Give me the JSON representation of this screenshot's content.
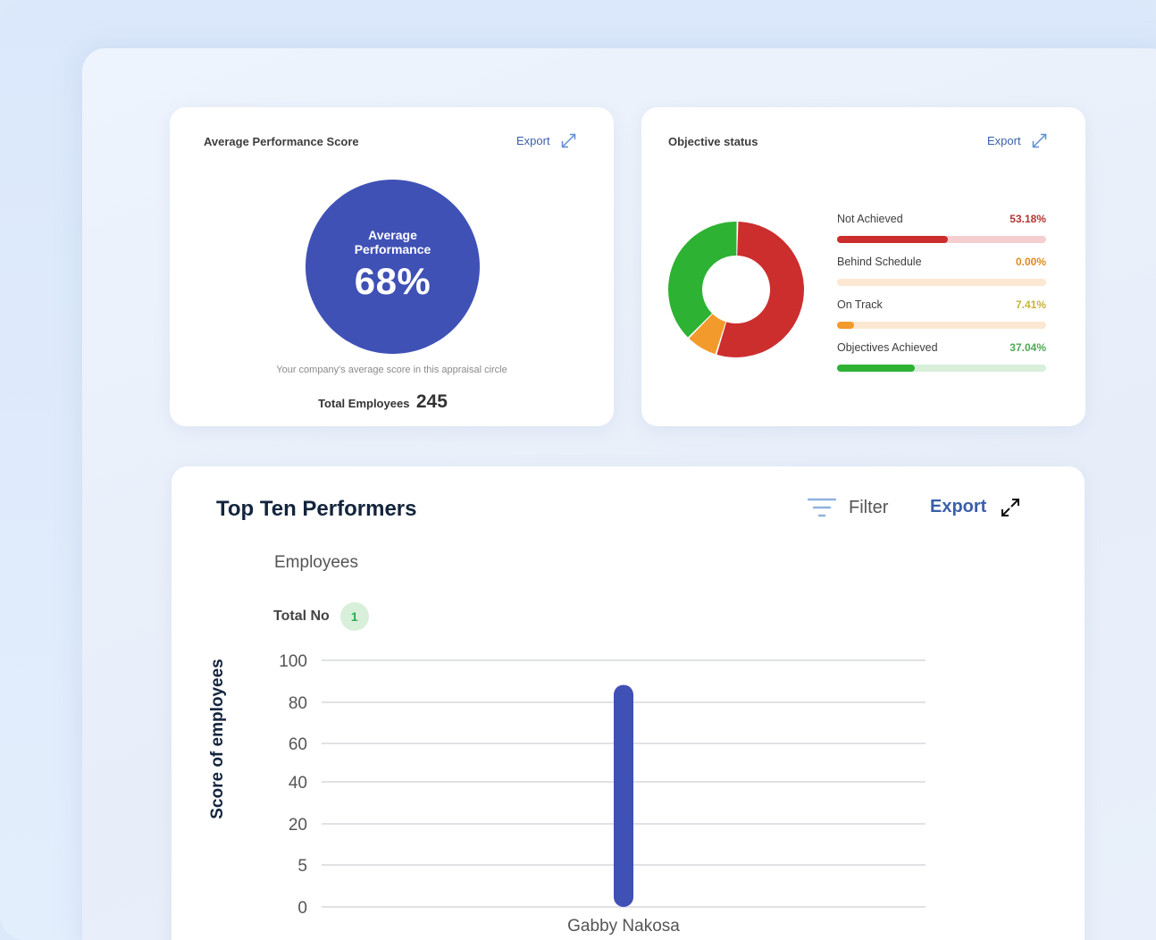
{
  "avg_card": {
    "title": "Average Performance Score",
    "export_label": "Export",
    "circle_label": "Average Performance",
    "circle_value": "68%",
    "caption": "Your company's average score in this appraisal circle",
    "total_label": "Total Employees",
    "total_value": "245",
    "circle_color": "#3f51b5"
  },
  "obj_card": {
    "title": "Objective status",
    "export_label": "Export",
    "statuses": [
      {
        "name": "Not Achieved",
        "pct": "53.18%",
        "value": 53.18,
        "color": "#cc2e2e",
        "track": "#f5cfd0",
        "text_color": "#b23535"
      },
      {
        "name": "Behind Schedule",
        "pct": "0.00%",
        "value": 0,
        "color": "#f2a93b",
        "track": "#fbe7d2",
        "text_color": "#e08a1e"
      },
      {
        "name": "On Track",
        "pct": "7.41%",
        "value": 7.41,
        "color": "#f39a2c",
        "track": "#fbe7d2",
        "text_color": "#c9b23a"
      },
      {
        "name": "Objectives Achieved",
        "pct": "37.04%",
        "value": 37.04,
        "color": "#2db233",
        "track": "#d8efd9",
        "text_color": "#4caa52"
      }
    ]
  },
  "top_card": {
    "title": "Top Ten Performers",
    "filter_label": "Filter",
    "export_label": "Export",
    "section_heading": "Employees",
    "total_label": "Total No",
    "total_value": "1"
  },
  "chart_data": {
    "type": "bar",
    "categories": [
      "Gabby Nakosa"
    ],
    "values": [
      88
    ],
    "ylabel": "Score of employees",
    "y_ticks": [
      100,
      80,
      60,
      40,
      20,
      5,
      0
    ],
    "bar_color": "#3f51b5",
    "grid": true
  }
}
